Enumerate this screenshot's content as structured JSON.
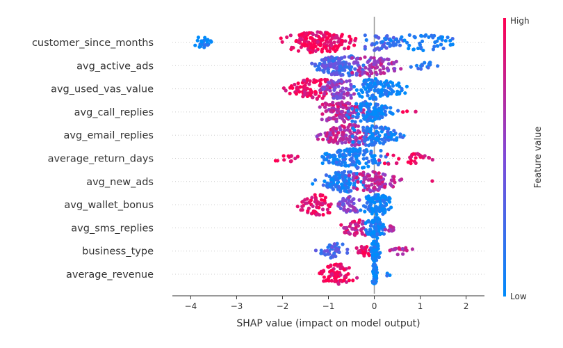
{
  "chart_data": {
    "type": "scatter",
    "subtype": "shap-beeswarm",
    "xlabel": "SHAP value (impact on model output)",
    "xlim": [
      -4.4,
      2.4
    ],
    "xticks": [
      -4,
      -3,
      -2,
      -1,
      0,
      1,
      2
    ],
    "xtick_labels": [
      "−4",
      "−3",
      "−2",
      "−1",
      "0",
      "1",
      "2"
    ],
    "zero_line": true,
    "colorbar": {
      "title": "Feature value",
      "high_label": "High",
      "low_label": "Low",
      "high_color": "#ff0052",
      "low_color": "#008bfb"
    },
    "features": [
      {
        "name": "customer_since_months",
        "clusters": [
          {
            "min": -4.1,
            "max": -3.3,
            "count": 25,
            "value": 0.02,
            "peak": -3.8
          },
          {
            "min": -2.3,
            "max": -0.2,
            "count": 170,
            "value": 0.97,
            "peak": -1.2
          },
          {
            "min": -0.2,
            "max": 1.1,
            "count": 55,
            "value": 0.25,
            "peak": -0.1
          },
          {
            "min": 0.3,
            "max": 2.1,
            "count": 45,
            "value": 0.08,
            "peak": 1.0
          }
        ]
      },
      {
        "name": "avg_active_ads",
        "clusters": [
          {
            "min": -1.7,
            "max": -0.1,
            "count": 140,
            "value": 0.3,
            "peak": -0.6
          },
          {
            "min": -0.8,
            "max": 0.9,
            "count": 80,
            "value": 0.65,
            "peak": -0.2
          },
          {
            "min": 0.6,
            "max": 1.6,
            "count": 16,
            "value": 0.1,
            "peak": 1.0
          }
        ]
      },
      {
        "name": "avg_used_vas_value",
        "clusters": [
          {
            "min": -2.2,
            "max": -0.7,
            "count": 90,
            "value": 0.95,
            "peak": -1.3
          },
          {
            "min": -1.4,
            "max": -0.3,
            "count": 75,
            "value": 0.55,
            "peak": -0.7
          },
          {
            "min": -0.5,
            "max": 0.9,
            "count": 110,
            "value": 0.05,
            "peak": 0.0
          }
        ]
      },
      {
        "name": "avg_call_replies",
        "clusters": [
          {
            "min": -1.3,
            "max": 0.0,
            "count": 100,
            "value": 0.75,
            "peak": -0.8
          },
          {
            "min": -0.6,
            "max": 0.8,
            "count": 110,
            "value": 0.08,
            "peak": -0.3
          },
          {
            "min": 0.6,
            "max": 1.35,
            "count": 5,
            "value": 0.95,
            "peak": 0.7
          }
        ]
      },
      {
        "name": "avg_email_replies",
        "clusters": [
          {
            "min": -1.5,
            "max": 0.1,
            "count": 120,
            "value": 0.72,
            "peak": -0.5
          },
          {
            "min": -0.5,
            "max": 0.9,
            "count": 100,
            "value": 0.12,
            "peak": -0.1
          }
        ]
      },
      {
        "name": "average_return_days",
        "clusters": [
          {
            "min": -2.4,
            "max": -1.4,
            "count": 12,
            "value": 0.97,
            "peak": -1.9
          },
          {
            "min": -1.6,
            "max": 0.3,
            "count": 150,
            "value": 0.1,
            "peak": -0.3
          },
          {
            "min": 0.1,
            "max": 2.0,
            "count": 30,
            "value": 0.92,
            "peak": 0.5
          }
        ]
      },
      {
        "name": "avg_new_ads",
        "clusters": [
          {
            "min": -1.5,
            "max": -0.2,
            "count": 120,
            "value": 0.12,
            "peak": -0.6
          },
          {
            "min": -0.6,
            "max": 0.9,
            "count": 90,
            "value": 0.7,
            "peak": -0.2
          },
          {
            "min": 1.2,
            "max": 1.3,
            "count": 1,
            "value": 0.95,
            "peak": 1.25
          }
        ]
      },
      {
        "name": "avg_wallet_bonus",
        "clusters": [
          {
            "min": -1.8,
            "max": -0.8,
            "count": 60,
            "value": 0.95,
            "peak": -1.2
          },
          {
            "min": -1.0,
            "max": -0.2,
            "count": 45,
            "value": 0.5,
            "peak": -0.5
          },
          {
            "min": -0.4,
            "max": 0.5,
            "count": 90,
            "value": 0.05,
            "peak": 0.05
          }
        ]
      },
      {
        "name": "avg_sms_replies",
        "clusters": [
          {
            "min": -1.0,
            "max": -0.1,
            "count": 45,
            "value": 0.8,
            "peak": -0.3
          },
          {
            "min": -0.3,
            "max": 0.3,
            "count": 75,
            "value": 0.05,
            "peak": 0.05
          },
          {
            "min": 0.2,
            "max": 0.6,
            "count": 14,
            "value": 0.65,
            "peak": 0.3
          }
        ]
      },
      {
        "name": "business_type",
        "clusters": [
          {
            "min": -1.4,
            "max": -0.4,
            "count": 40,
            "value": 0.3,
            "peak": -0.8
          },
          {
            "min": -0.5,
            "max": 0.0,
            "count": 25,
            "value": 0.95,
            "peak": -0.2
          },
          {
            "min": -0.1,
            "max": 0.15,
            "count": 80,
            "value": 0.02,
            "peak": 0.02
          },
          {
            "min": 0.2,
            "max": 1.1,
            "count": 16,
            "value": 0.75,
            "peak": 0.5
          }
        ]
      },
      {
        "name": "average_revenue",
        "clusters": [
          {
            "min": -1.4,
            "max": -0.35,
            "count": 70,
            "value": 0.97,
            "peak": -0.8
          },
          {
            "min": -0.05,
            "max": 0.1,
            "count": 70,
            "value": 0.02,
            "peak": 0.0
          },
          {
            "min": 0.2,
            "max": 0.4,
            "count": 3,
            "value": 0.1,
            "peak": 0.3
          }
        ]
      }
    ]
  }
}
